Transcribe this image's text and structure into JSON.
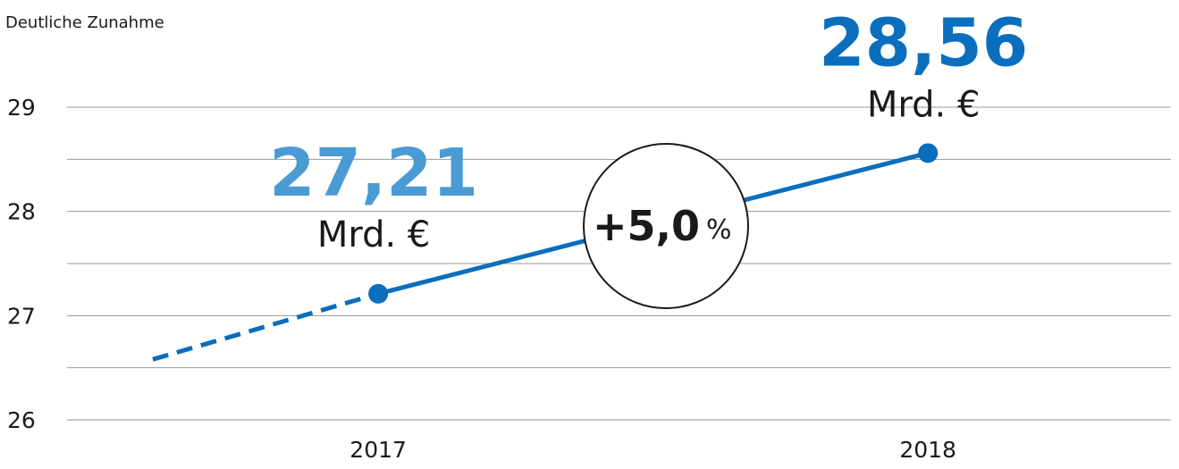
{
  "chart_data": {
    "type": "line",
    "title": "Deutliche Zunahme",
    "x": [
      2016.59,
      2017,
      2018
    ],
    "xlim": [
      2016.434,
      2018.442
    ],
    "xticks": [
      2017,
      2018
    ],
    "ylim": [
      26,
      29
    ],
    "yticks": [
      26,
      27,
      28,
      29
    ],
    "grid_lines": [
      26,
      26.5,
      27,
      27.5,
      28,
      28.5,
      29
    ],
    "series": [
      {
        "color": "#0a6ebd",
        "values": [
          26.58,
          27.21,
          28.56
        ],
        "value_labels": [
          null,
          "27,21",
          "28,56"
        ],
        "label_colors": [
          null,
          "#4a9ad4",
          "#0a6ebd"
        ],
        "dashed_segments": [
          0
        ]
      }
    ],
    "unit": "Mrd. €",
    "annotation": {
      "value": "+5,0",
      "unit": "%"
    }
  }
}
